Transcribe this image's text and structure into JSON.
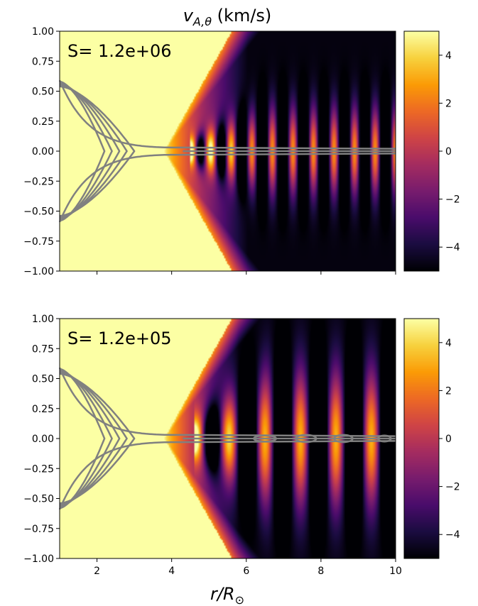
{
  "figure_title": "v_{A,θ} (km/s)",
  "colormap": {
    "name": "inferno",
    "stops": [
      "#000004",
      "#1b0c41",
      "#4a0c6b",
      "#781c6d",
      "#a52c60",
      "#cf4446",
      "#ed6925",
      "#fb9b06",
      "#f7d13d",
      "#fcffa4"
    ]
  },
  "chart_data": [
    {
      "type": "heatmap",
      "annotation": "S= 1.2e+06",
      "title": "v_{A,θ} (km/s)",
      "xlabel": "",
      "ylabel": "",
      "xlim": [
        1,
        10
      ],
      "ylim": [
        -1,
        1
      ],
      "x_ticks": [
        2,
        4,
        6,
        8,
        10
      ],
      "x_tick_labels_shown": false,
      "y_ticks": [
        -1.0,
        -0.75,
        -0.5,
        -0.25,
        0.0,
        0.25,
        0.5,
        0.75,
        1.0
      ],
      "y_tick_labels": [
        "−1.00",
        "−0.75",
        "−0.50",
        "−0.25",
        "0.00",
        "0.25",
        "0.50",
        "0.75",
        "1.00"
      ],
      "colorbar": {
        "vmin": -5,
        "vmax": 5,
        "ticks": [
          -4,
          -2,
          0,
          2,
          4
        ],
        "tick_labels": [
          "−4",
          "−2",
          "0",
          "2",
          "4"
        ]
      },
      "background_value": 5,
      "wave": {
        "front_r": 3.8,
        "front_slope": 0.55,
        "onset_r": 4.5,
        "wavelength": 0.55,
        "lobe_amplitude": 4.6,
        "lobe_rows": 0.35,
        "negative_region_min_r": 6.5
      },
      "field_lines": {
        "stroke": "#808080",
        "line_width": 2.5,
        "y0": [
          0.58,
          0.57,
          0.56,
          0.55,
          0.54
        ],
        "x_tip": [
          2.2,
          2.4,
          2.6,
          2.8,
          3.0
        ],
        "separatrix_y0": 0.59,
        "current_sheet_start": 4.3,
        "current_sheet_end": 10.0,
        "islands": []
      }
    },
    {
      "type": "heatmap",
      "annotation": "S= 1.2e+05",
      "xlabel": "r/R_⊙",
      "ylabel": "",
      "xlim": [
        1,
        10
      ],
      "ylim": [
        -1,
        1
      ],
      "x_ticks": [
        2,
        4,
        6,
        8,
        10
      ],
      "x_tick_labels": [
        "2",
        "4",
        "6",
        "8",
        "10"
      ],
      "y_ticks": [
        -1.0,
        -0.75,
        -0.5,
        -0.25,
        0.0,
        0.25,
        0.5,
        0.75,
        1.0
      ],
      "y_tick_labels": [
        "−1.00",
        "−0.75",
        "−0.50",
        "−0.25",
        "0.00",
        "0.25",
        "0.50",
        "0.75",
        "1.00"
      ],
      "colorbar": {
        "vmin": -5,
        "vmax": 5,
        "ticks": [
          -4,
          -2,
          0,
          2,
          4
        ],
        "tick_labels": [
          "−4",
          "−2",
          "0",
          "2",
          "4"
        ]
      },
      "background_value": 5,
      "wave": {
        "front_r": 3.8,
        "front_slope": 0.55,
        "onset_r": 4.6,
        "wavelength": 0.95,
        "lobe_amplitude": 5.0,
        "lobe_rows": 0.55,
        "negative_region_min_r": 6.2
      },
      "field_lines": {
        "stroke": "#808080",
        "line_width": 2.5,
        "y0": [
          0.58,
          0.57,
          0.56,
          0.55,
          0.54
        ],
        "x_tip": [
          2.2,
          2.4,
          2.6,
          2.8,
          3.0
        ],
        "separatrix_y0": 0.59,
        "current_sheet_start": 4.3,
        "current_sheet_end": 10.0,
        "islands": [
          [
            6.5,
            0.6,
            0.025
          ],
          [
            7.6,
            0.55,
            0.03
          ],
          [
            8.6,
            0.5,
            0.03
          ],
          [
            9.7,
            0.35,
            0.025
          ]
        ]
      }
    }
  ]
}
